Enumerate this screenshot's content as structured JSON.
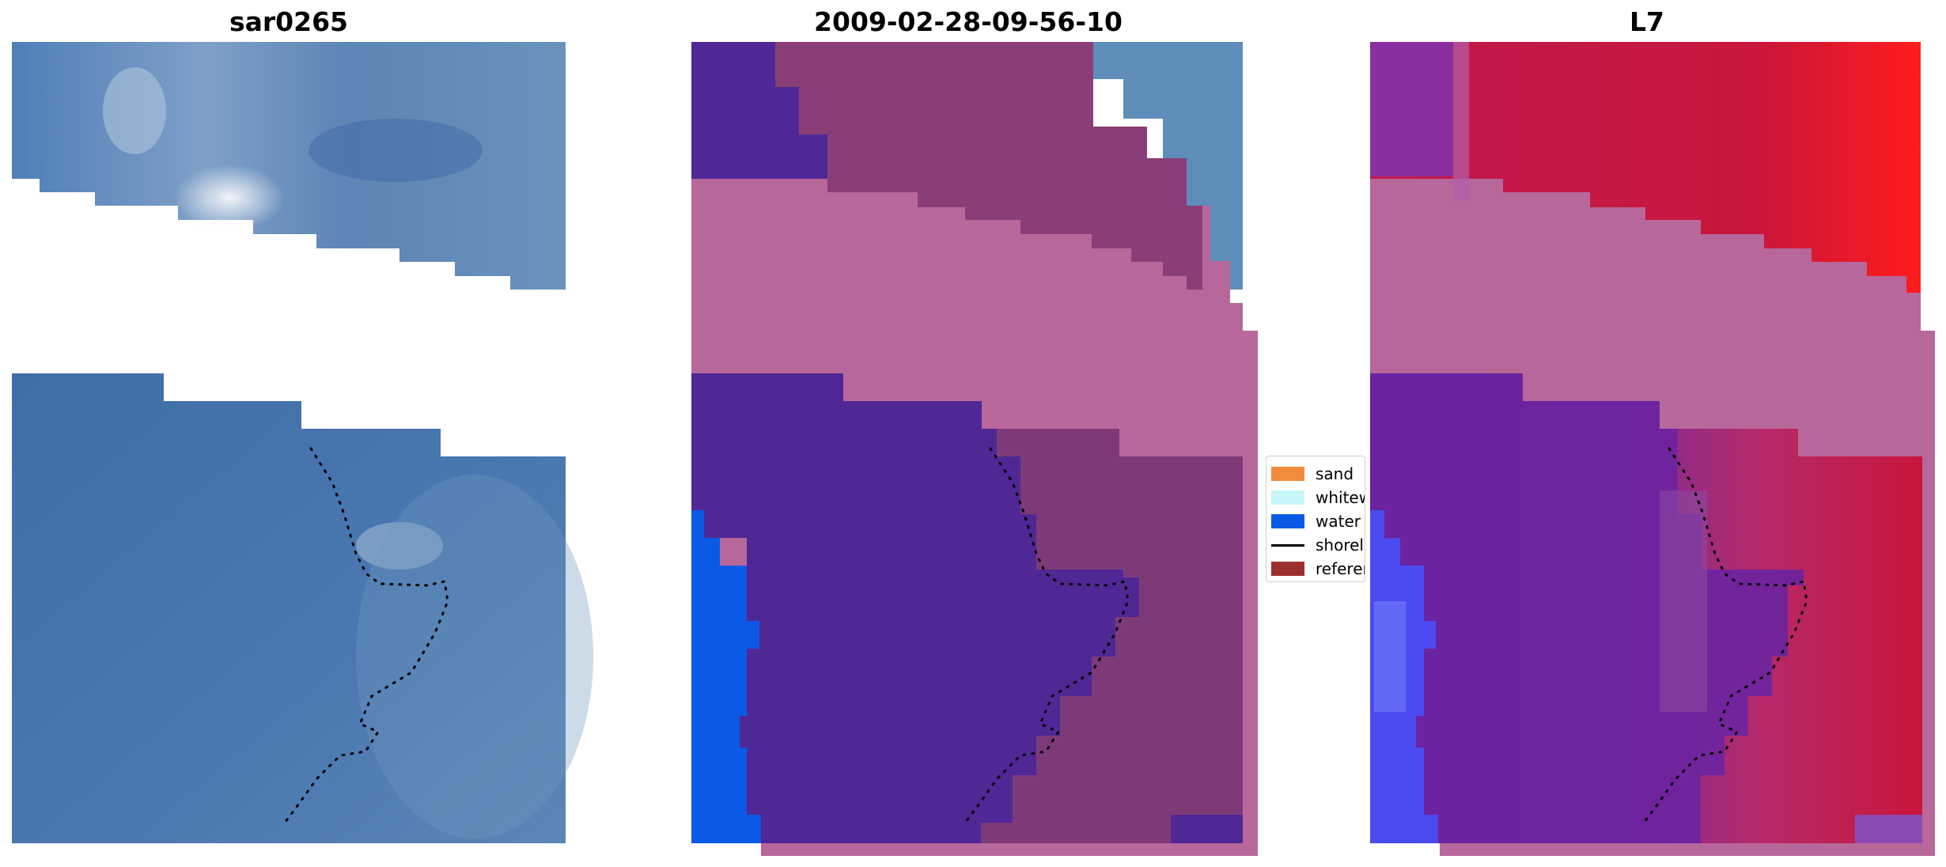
{
  "panels": [
    {
      "title": "sar0265"
    },
    {
      "title": "2009-02-28-09-56-10"
    },
    {
      "title": "L7"
    }
  ],
  "legend": {
    "items": [
      {
        "label": "sand",
        "color": "#f28c3c",
        "kind": "patch"
      },
      {
        "label": "whitewater",
        "color": "#c8f7f7",
        "kind": "patch"
      },
      {
        "label": "water",
        "color": "#0a5ae6",
        "kind": "patch"
      },
      {
        "label": "shoreline",
        "color": "#000000",
        "kind": "line"
      },
      {
        "label": "reference",
        "color": "#9c2f2f",
        "kind": "patch"
      }
    ]
  },
  "colors": {
    "rgb_land": "#5a8ab8",
    "rgb_sea": "#3f6ea8",
    "classified_water_deep": "#4f2896",
    "classified_sand_band": "#b8679a",
    "classified_water_edge": "#0a5ae6",
    "classified_land": "#8a3e78",
    "false_color_red": "#c8163c",
    "false_color_purple": "#6b23a0",
    "false_color_blue": "#4b4bf0"
  }
}
